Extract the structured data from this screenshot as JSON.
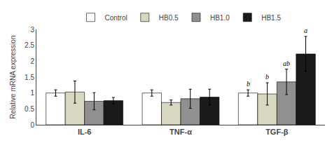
{
  "chart_data": {
    "type": "bar",
    "categories": [
      "IL-6",
      "TNF-α",
      "TGF-β"
    ],
    "series": [
      {
        "name": "Control",
        "color": "white",
        "values": [
          1.0,
          1.0,
          1.0
        ],
        "errors": [
          0.1,
          0.1,
          0.1
        ]
      },
      {
        "name": "HB0.5",
        "color": "#d8d8c0",
        "values": [
          1.03,
          0.7,
          0.97
        ],
        "errors": [
          0.35,
          0.08,
          0.35
        ]
      },
      {
        "name": "HB1.0",
        "color": "#909090",
        "values": [
          0.74,
          0.82,
          1.35
        ],
        "errors": [
          0.27,
          0.3,
          0.4
        ]
      },
      {
        "name": "HB1.5",
        "color": "#1a1a1a",
        "values": [
          0.76,
          0.87,
          2.23
        ],
        "errors": [
          0.1,
          0.25,
          0.55
        ]
      }
    ],
    "annotations": [
      {
        "category": "TGF-β",
        "series": "Control",
        "text": "b"
      },
      {
        "category": "TGF-β",
        "series": "HB0.5",
        "text": "b"
      },
      {
        "category": "TGF-β",
        "series": "HB1.0",
        "text": "ab"
      },
      {
        "category": "TGF-β",
        "series": "HB1.5",
        "text": "a"
      }
    ],
    "ylabel": "Relative mRNA expression",
    "ylim": [
      0.0,
      3.0
    ],
    "yticks": [
      0.0,
      0.5,
      1.0,
      1.5,
      2.0,
      2.5,
      3.0
    ],
    "grid": false,
    "legend": "top"
  }
}
